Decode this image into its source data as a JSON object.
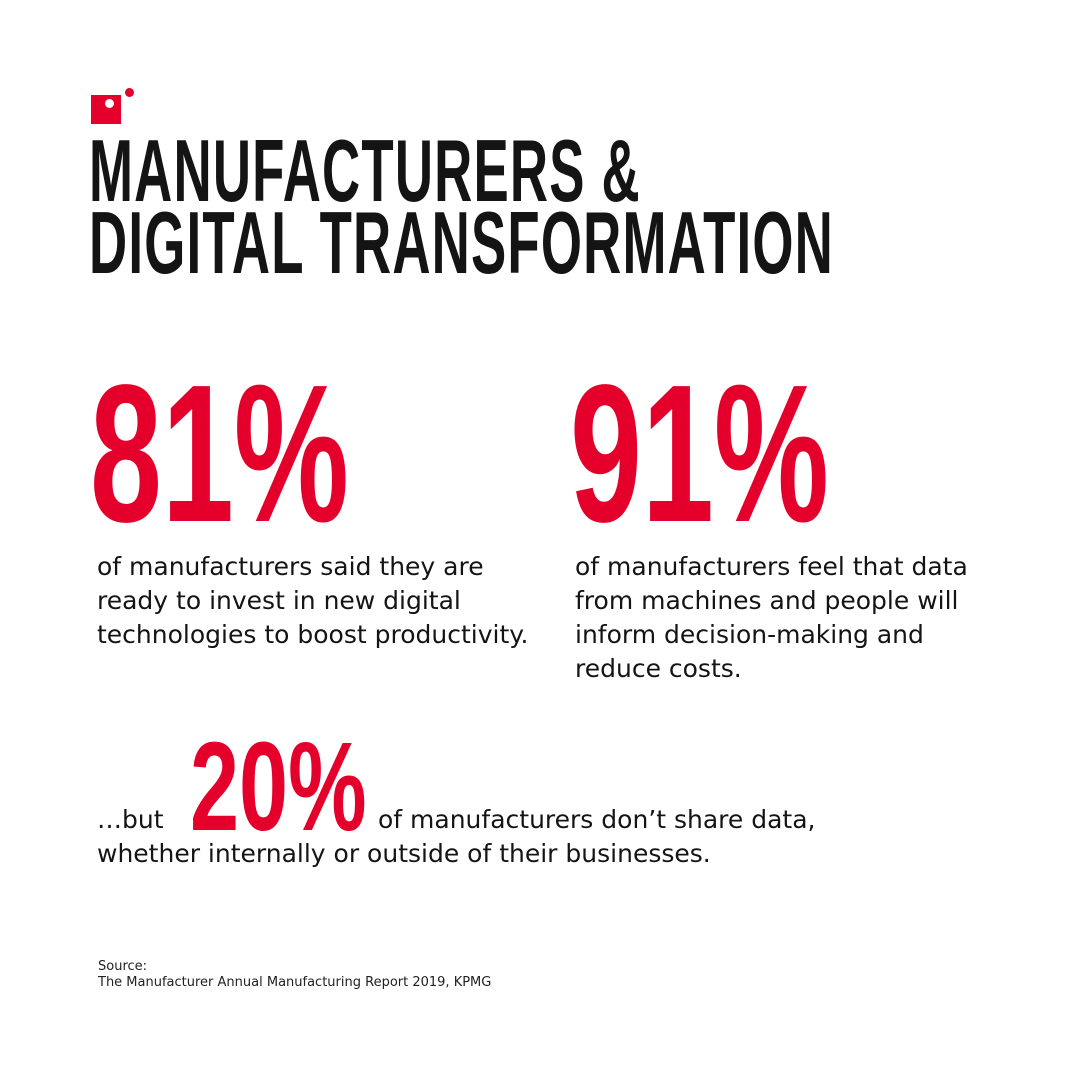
{
  "colors": {
    "accent": "#e4002b",
    "text": "#141414"
  },
  "logo": {
    "icon": "red-square-with-dots"
  },
  "title": {
    "line1": "MANUFACTURERS &",
    "line2": "DIGITAL TRANSFORMATION"
  },
  "stats": [
    {
      "value": "81%",
      "text": "of manufacturers said they are ready to invest in new digital technologies to boost productivity."
    },
    {
      "value": "91%",
      "text": "of manufacturers feel that data from machines and people will inform decision-making and reduce costs."
    }
  ],
  "third": {
    "prefix": "…but",
    "value": "20%",
    "text_line1": "of manufacturers don’t share data,",
    "text_line2": "whether internally or outside of their businesses."
  },
  "source": {
    "label": "Source:",
    "text": "The Manufacturer Annual Manufacturing Report 2019, KPMG"
  }
}
